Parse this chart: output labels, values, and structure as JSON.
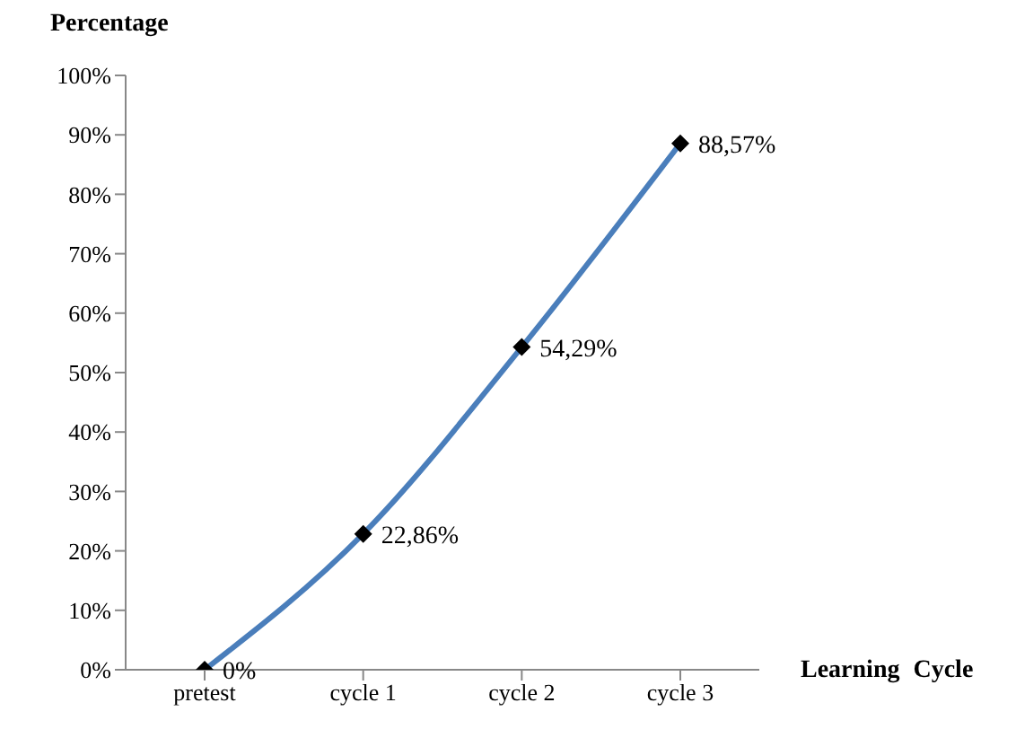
{
  "chart_data": {
    "type": "line",
    "xlabel": "Learning Cycle",
    "ylabel": "Percentage",
    "categories": [
      "pretest",
      "cycle 1",
      "cycle 2",
      "cycle 3"
    ],
    "series": [
      {
        "color": "#4a7ebb",
        "values": [
          0,
          22.86,
          54.29,
          88.57
        ],
        "value_labels": [
          "0%",
          "22,86%",
          "54,29%",
          "88,57%"
        ]
      }
    ],
    "ylim": [
      0,
      100
    ],
    "yticks": [
      {
        "value": 0,
        "label": "0%"
      },
      {
        "value": 10,
        "label": "10%"
      },
      {
        "value": 20,
        "label": "20%"
      },
      {
        "value": 30,
        "label": "30%"
      },
      {
        "value": 40,
        "label": "40%"
      },
      {
        "value": 50,
        "label": "50%"
      },
      {
        "value": 60,
        "label": "60%"
      },
      {
        "value": 70,
        "label": "70%"
      },
      {
        "value": 80,
        "label": "80%"
      },
      {
        "value": 90,
        "label": "90%"
      },
      {
        "value": 100,
        "label": "100%"
      }
    ],
    "marker": "diamond",
    "line_style": "solid",
    "grid": false,
    "legend": false
  }
}
